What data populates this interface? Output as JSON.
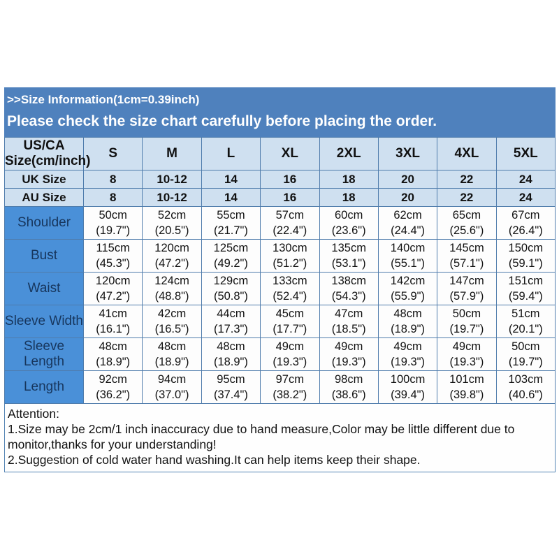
{
  "banner": {
    "line1": ">>Size Information(1cm=0.39inch)",
    "line2": "Please check the size chart carefully before placing the order."
  },
  "table": {
    "corner_header_line1": "US/CA",
    "corner_header_line2": "Size(cm/inch)",
    "size_headers": [
      "S",
      "M",
      "L",
      "XL",
      "2XL",
      "3XL",
      "4XL",
      "5XL"
    ],
    "conversion_rows": [
      {
        "label": "UK Size",
        "values": [
          "8",
          "10-12",
          "14",
          "16",
          "18",
          "20",
          "22",
          "24"
        ]
      },
      {
        "label": "AU Size",
        "values": [
          "8",
          "10-12",
          "14",
          "16",
          "18",
          "20",
          "22",
          "24"
        ]
      }
    ],
    "measurement_rows": [
      {
        "label": "Shoulder",
        "cm": [
          "50cm",
          "52cm",
          "55cm",
          "57cm",
          "60cm",
          "62cm",
          "65cm",
          "67cm"
        ],
        "inch": [
          "(19.7\")",
          "(20.5\")",
          "(21.7\")",
          "(22.4\")",
          "(23.6\")",
          "(24.4\")",
          "(25.6\")",
          "(26.4\")"
        ]
      },
      {
        "label": "Bust",
        "cm": [
          "115cm",
          "120cm",
          "125cm",
          "130cm",
          "135cm",
          "140cm",
          "145cm",
          "150cm"
        ],
        "inch": [
          "(45.3\")",
          "(47.2\")",
          "(49.2\")",
          "(51.2\")",
          "(53.1\")",
          "(55.1\")",
          "(57.1\")",
          "(59.1\")"
        ]
      },
      {
        "label": "Waist",
        "cm": [
          "120cm",
          "124cm",
          "129cm",
          "133cm",
          "138cm",
          "142cm",
          "147cm",
          "151cm"
        ],
        "inch": [
          "(47.2\")",
          "(48.8\")",
          "(50.8\")",
          "(52.4\")",
          "(54.3\")",
          "(55.9\")",
          "(57.9\")",
          "(59.4\")"
        ]
      },
      {
        "label": "Sleeve Width",
        "cm": [
          "41cm",
          "42cm",
          "44cm",
          "45cm",
          "47cm",
          "48cm",
          "50cm",
          "51cm"
        ],
        "inch": [
          "(16.1\")",
          "(16.5\")",
          "(17.3\")",
          "(17.7\")",
          "(18.5\")",
          "(18.9\")",
          "(19.7\")",
          "(20.1\")"
        ]
      },
      {
        "label": "Sleeve Length",
        "cm": [
          "48cm",
          "48cm",
          "48cm",
          "49cm",
          "49cm",
          "49cm",
          "49cm",
          "50cm"
        ],
        "inch": [
          "(18.9\")",
          "(18.9\")",
          "(18.9\")",
          "(19.3\")",
          "(19.3\")",
          "(19.3\")",
          "(19.3\")",
          "(19.7\")"
        ]
      },
      {
        "label": "Length",
        "cm": [
          "92cm",
          "94cm",
          "95cm",
          "97cm",
          "98cm",
          "100cm",
          "101cm",
          "103cm"
        ],
        "inch": [
          "(36.2\")",
          "(37.0\")",
          "(37.4\")",
          "(38.2\")",
          "(38.6\")",
          "(39.4\")",
          "(39.8\")",
          "(40.6\")"
        ]
      }
    ]
  },
  "attention": {
    "title": "Attention:",
    "note1": "1.Size may be 2cm/1 inch inaccuracy due to hand measure,Color may be little different due to monitor,thanks for your understanding!",
    "note2": "2.Suggestion of cold water hand washing.It can help items keep their shape."
  },
  "colors": {
    "banner_blue": "#4f81bd",
    "header_light_blue": "#cfe0f0",
    "label_column_blue": "#4a90d8",
    "label_text_navy": "#17365d",
    "border_blue": "#4f7cac"
  }
}
